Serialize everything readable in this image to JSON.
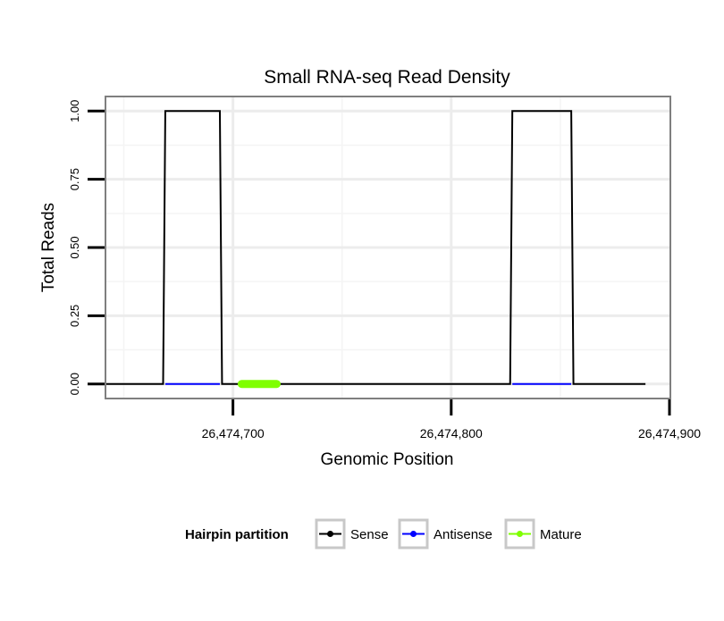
{
  "chart_data": {
    "type": "line",
    "title": "Small RNA-seq Read Density",
    "xlabel": "Genomic Position",
    "ylabel": "Total Reads",
    "xlim": [
      26474642,
      26474900
    ],
    "ylim": [
      -0.05,
      1.05
    ],
    "x_ticks": [
      {
        "value": 26474700,
        "label": "26,474,700"
      },
      {
        "value": 26474800,
        "label": "26,474,800"
      },
      {
        "value": 26474900,
        "label": "26,474,900"
      }
    ],
    "y_ticks": [
      {
        "value": 0,
        "label": "0.00"
      },
      {
        "value": 0.25,
        "label": "0.25"
      },
      {
        "value": 0.5,
        "label": "0.50"
      },
      {
        "value": 0.75,
        "label": "0.75"
      },
      {
        "value": 1,
        "label": "1.00"
      }
    ],
    "grid": true,
    "series": [
      {
        "name": "Sense",
        "color": "#000000",
        "points": [
          [
            26474642,
            0
          ],
          [
            26474668,
            0
          ],
          [
            26474669,
            1
          ],
          [
            26474694,
            1
          ],
          [
            26474695,
            0
          ],
          [
            26474827,
            0
          ],
          [
            26474828,
            1
          ],
          [
            26474855,
            1
          ],
          [
            26474856,
            0
          ],
          [
            26474889,
            0
          ]
        ]
      },
      {
        "name": "Antisense",
        "color": "#0000ff",
        "points": [
          [
            26474669,
            0
          ],
          [
            26474694,
            0
          ],
          [
            26474828,
            0
          ],
          [
            26474855,
            0
          ]
        ]
      },
      {
        "name": "Mature",
        "color": "#7fff00",
        "points": [
          [
            26474704,
            0
          ],
          [
            26474720,
            0
          ]
        ]
      }
    ],
    "legend": {
      "title": "Hairpin partition",
      "placement": "bottom",
      "items": [
        "Sense",
        "Antisense",
        "Mature"
      ]
    }
  }
}
